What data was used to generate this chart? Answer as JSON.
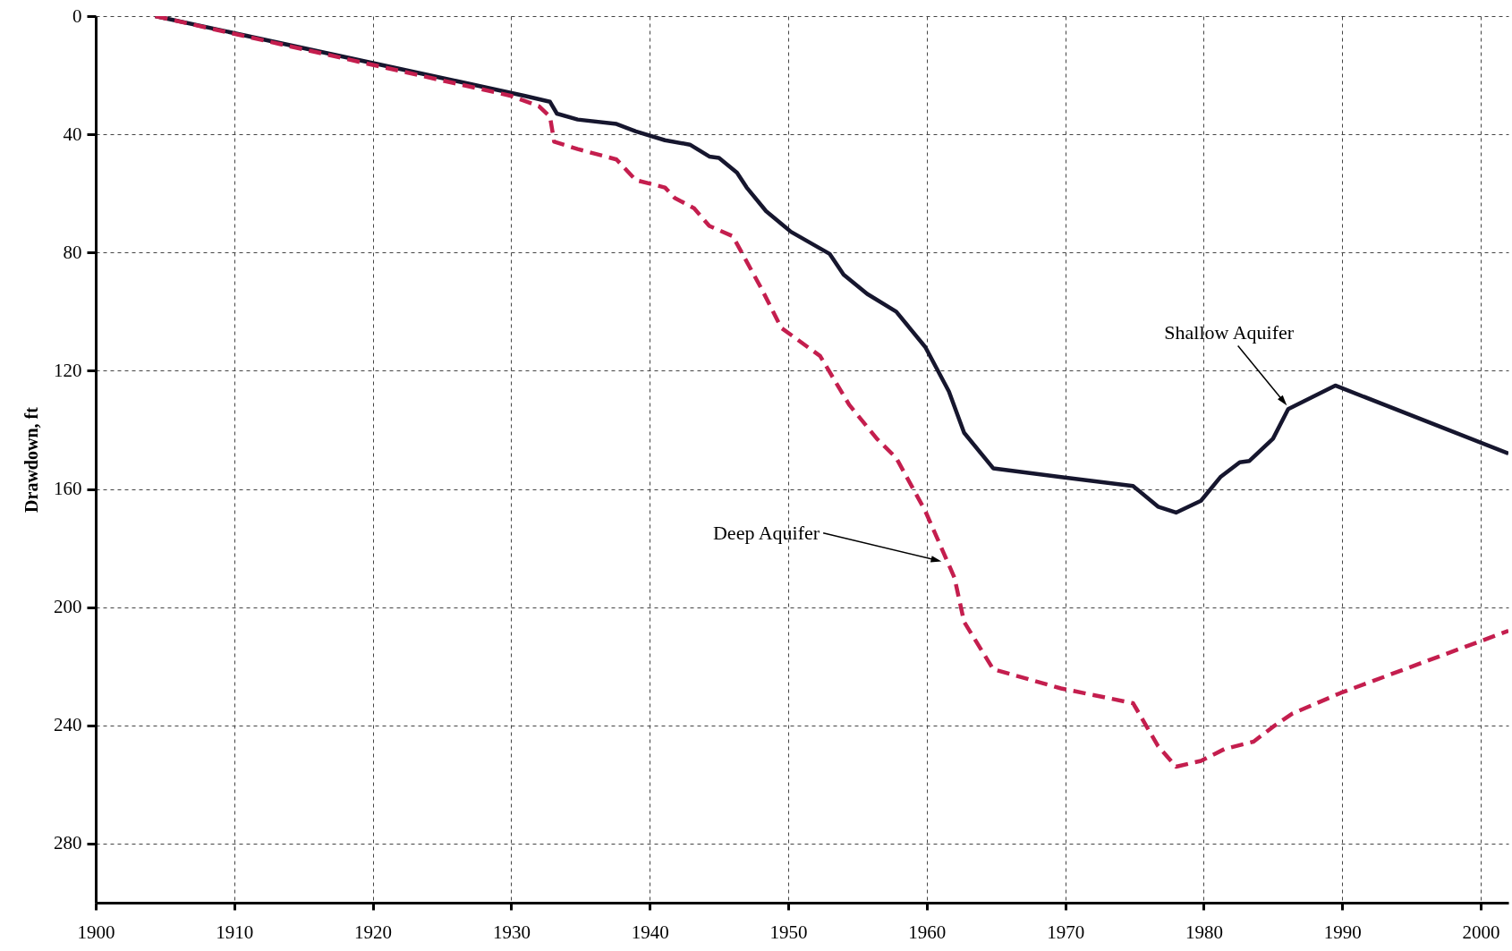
{
  "chart_data": {
    "type": "line",
    "ylabel": "Drawdown, ft",
    "xlim": [
      1900,
      2002
    ],
    "xticks": [
      1900,
      1910,
      1920,
      1930,
      1940,
      1950,
      1960,
      1970,
      1980,
      1990,
      2000
    ],
    "ylim": [
      300,
      0
    ],
    "yticks": [
      0,
      40,
      80,
      120,
      160,
      200,
      240,
      280
    ],
    "grid": true,
    "marker": "none",
    "series": [
      {
        "color": "#16162e",
        "line_style": "solid",
        "x": [
          1904.3,
          1931,
          1932.8,
          1933.3,
          1934.8,
          1937.6,
          1939,
          1941.1,
          1942.9,
          1944.3,
          1945,
          1946.3,
          1947,
          1948.4,
          1950.2,
          1953,
          1954,
          1955.7,
          1957.8,
          1959.9,
          1961.6,
          1962.7,
          1964.8,
          1969.7,
          1974.9,
          1976.7,
          1978,
          1979.8,
          1981.2,
          1982.6,
          1983.3,
          1985,
          1986.1,
          1989.5,
          2002
        ],
        "values": [
          0,
          27,
          29,
          33,
          35,
          36.5,
          39,
          42,
          43.5,
          47.5,
          48,
          53,
          58,
          66,
          73,
          80.5,
          87.5,
          94,
          100,
          112,
          127,
          141,
          153,
          156,
          159,
          166,
          168,
          164,
          156,
          151,
          150.5,
          143,
          133,
          125,
          148
        ]
      },
      {
        "color": "#c41e4e",
        "line_style": "dashed",
        "x": [
          1904.3,
          1930,
          1932,
          1932.8,
          1933.1,
          1934.8,
          1937.6,
          1939,
          1941.1,
          1941.8,
          1943.2,
          1944.3,
          1946,
          1948.1,
          1949.5,
          1952.3,
          1954.4,
          1956.4,
          1957.8,
          1959.9,
          1962,
          1962.7,
          1964.8,
          1969.7,
          1974.9,
          1976.7,
          1978,
          1979.8,
          1981.5,
          1983.6,
          1985,
          1986.4,
          1989.9,
          2002
        ],
        "values": [
          0,
          27,
          30.5,
          34,
          42.5,
          45,
          48.5,
          55.5,
          58,
          61.5,
          65,
          71,
          74.5,
          92.5,
          105.5,
          115,
          131.5,
          143,
          149.5,
          167.5,
          190,
          205,
          221,
          227.5,
          232.5,
          247,
          254,
          252,
          248,
          245.5,
          240.5,
          236,
          229,
          208
        ]
      }
    ],
    "annotations": [
      {
        "text": "Shallow Aquifer",
        "x": 1985.7,
        "y": 130
      },
      {
        "text": "Deep Aquifer",
        "x": 1960.6,
        "y": 184
      }
    ]
  }
}
